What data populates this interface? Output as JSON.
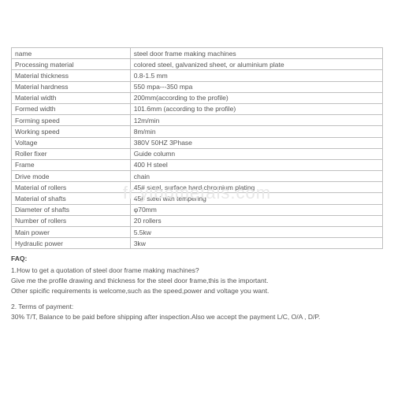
{
  "table": {
    "border_color": "#bfbfbf",
    "text_color": "#555555",
    "background_color": "#ffffff",
    "font_size": 8.5,
    "label_col_width_pct": 32,
    "value_col_width_pct": 68,
    "rows": [
      {
        "label": "name",
        "value": "steel door frame making machines"
      },
      {
        "label": "Processing material",
        "value": "colored steel, galvanized sheet, or aluminium plate"
      },
      {
        "label": "Material thickness",
        "value": "0.8-1.5 mm"
      },
      {
        "label": "Material hardness",
        "value": "550 mpa---350 mpa"
      },
      {
        "label": "Material width",
        "value": "200mm(according to the profile)"
      },
      {
        "label": "Formed width",
        "value": "101.6mm (according to the profile)"
      },
      {
        "label": "Forming speed",
        "value": "12m/min"
      },
      {
        "label": "Working speed",
        "value": "8m/min"
      },
      {
        "label": "Voltage",
        "value": "380V 50HZ 3Phase"
      },
      {
        "label": "Roller fixer",
        "value": "Guide column"
      },
      {
        "label": "Frame",
        "value": "400 H steel"
      },
      {
        "label": "Drive mode",
        "value": "chain"
      },
      {
        "label": "Material of rollers",
        "value": "45# steel, surface hard chromium plating"
      },
      {
        "label": "Material of shafts",
        "value": "45# steel with tempering"
      },
      {
        "label": "Diameter of shafts",
        "value": "φ70mm"
      },
      {
        "label": "Number of rollers",
        "value": "20 rollers"
      },
      {
        "label": "Main power",
        "value": "5.5kw"
      },
      {
        "label": "Hydraulic power",
        "value": "3kw"
      }
    ]
  },
  "faq": {
    "title": "FAQ:",
    "q1": {
      "question": "1.How to get a quotation of steel door frame making machines?",
      "line1": "Give me the profile drawing and thickness for the steel door frame,this is the important.",
      "line2": "Other spicific requirements is welcome,such as the speed,power and voltage you want."
    },
    "q2": {
      "question": "2. Terms of payment:",
      "line1": "30% T/T, Balance to be paid before shipping after inspection.Also we accept the payment L/C, O/A , D/P."
    }
  },
  "watermark": "fr.yibometals.com"
}
